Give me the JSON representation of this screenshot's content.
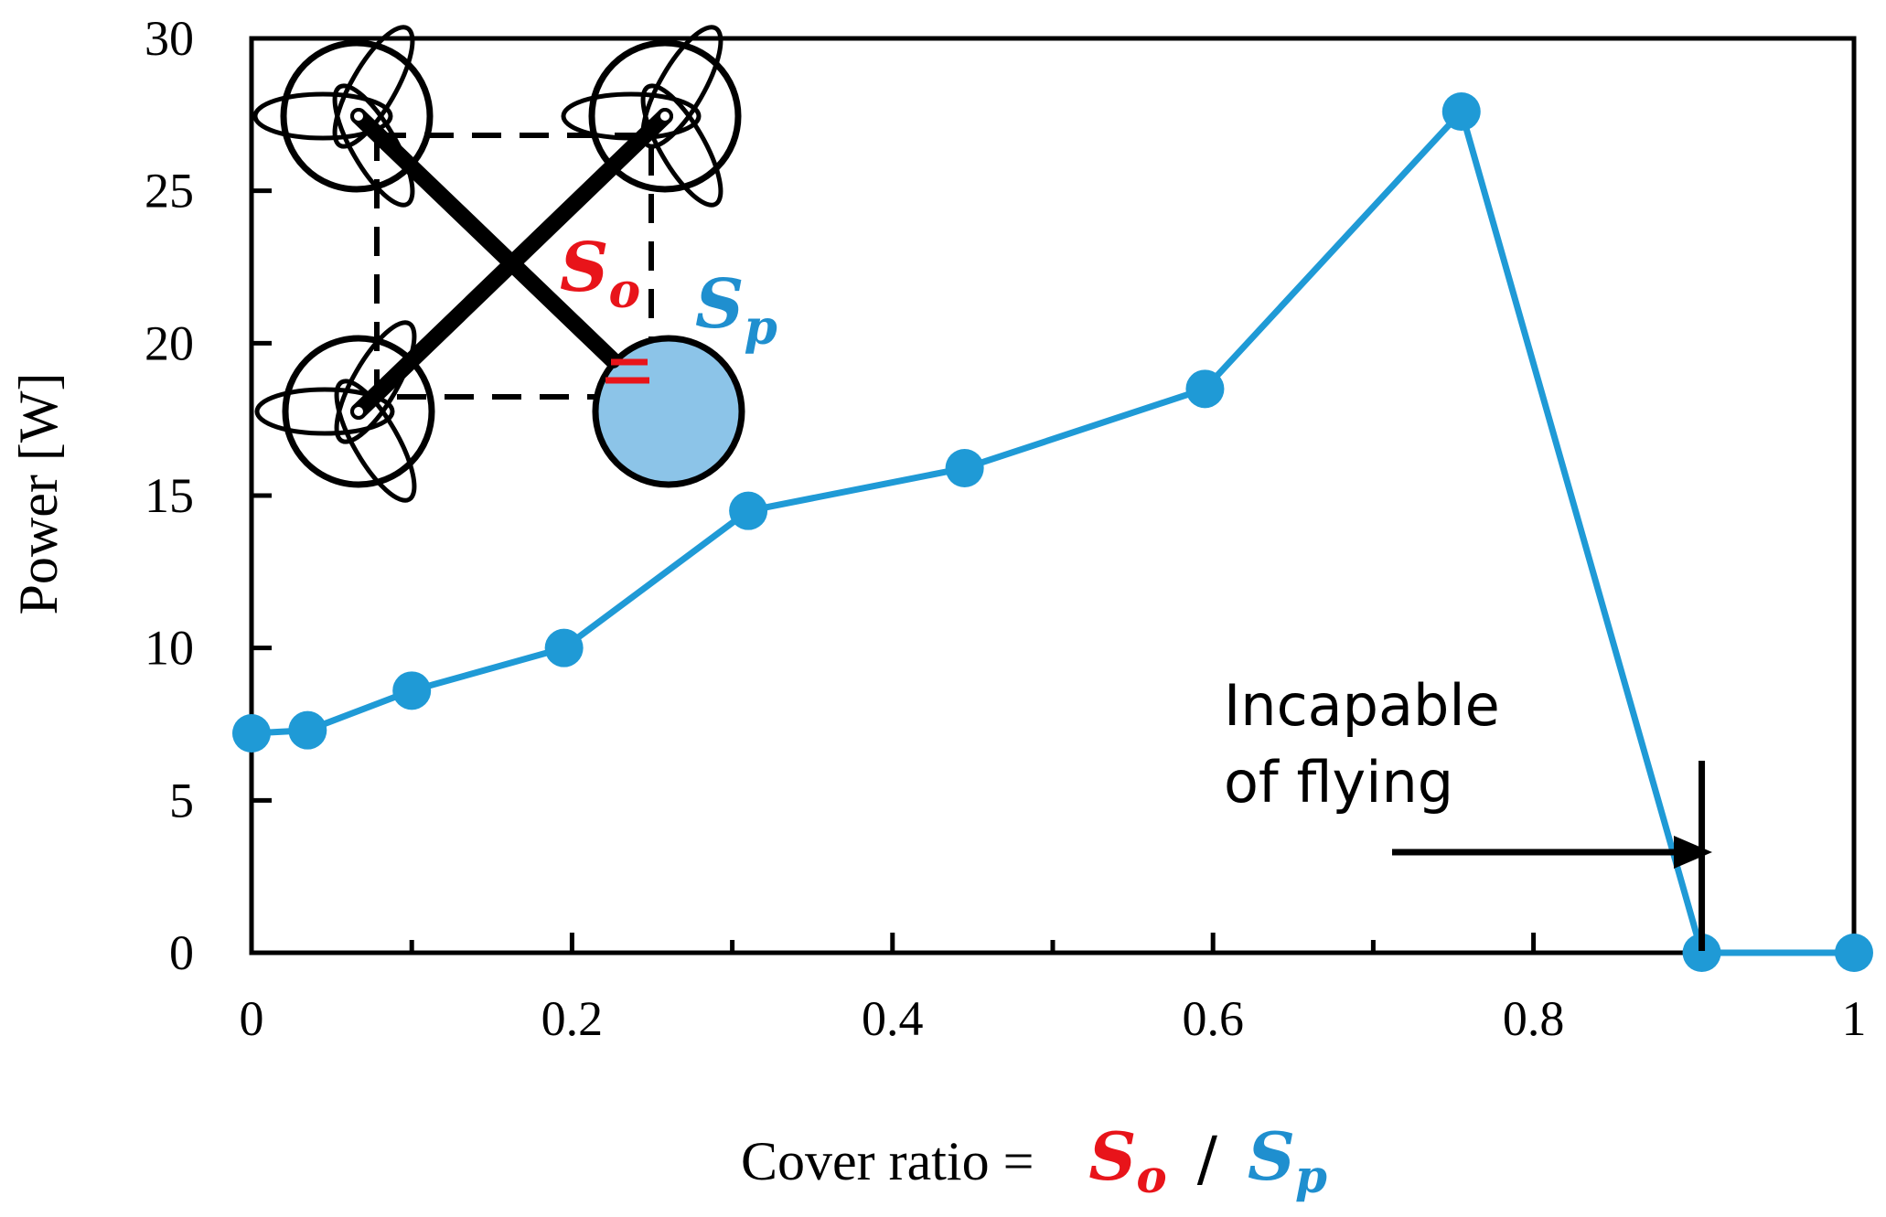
{
  "chart_data": {
    "type": "line",
    "x": [
      0,
      0.035,
      0.1,
      0.195,
      0.31,
      0.445,
      0.595,
      0.755,
      0.905,
      1.0
    ],
    "series": [
      {
        "values": [
          7.2,
          7.3,
          8.6,
          10.0,
          14.5,
          15.9,
          18.5,
          27.6,
          0.0,
          0.0
        ]
      }
    ],
    "xlim": [
      0,
      1
    ],
    "ylim": [
      0,
      30
    ],
    "x_ticks": [
      "0",
      "0.2",
      "0.4",
      "0.6",
      "0.8",
      "1"
    ],
    "y_ticks": [
      "0",
      "5",
      "10",
      "15",
      "20",
      "25",
      "30"
    ],
    "ylabel": "Power [W]",
    "xlabel_prefix": "Cover ratio =",
    "xlabel_numerator": "S",
    "xlabel_numerator_sub": "o",
    "xlabel_separator": "/",
    "xlabel_denominator": "S",
    "xlabel_denominator_sub": "p",
    "annotation_line1": "Incapable",
    "annotation_line2": "of flying",
    "annotation_limit_x": 0.905,
    "inset_label_open": "S",
    "inset_label_open_sub": "o",
    "inset_label_prop": "S",
    "inset_label_prop_sub": "p",
    "grid": false,
    "legend": "none",
    "colors": {
      "series": "#1f9ad6",
      "open": "#e8141a",
      "prop": "#1f8fcf",
      "prop_fill": "#8cc4e8"
    }
  }
}
